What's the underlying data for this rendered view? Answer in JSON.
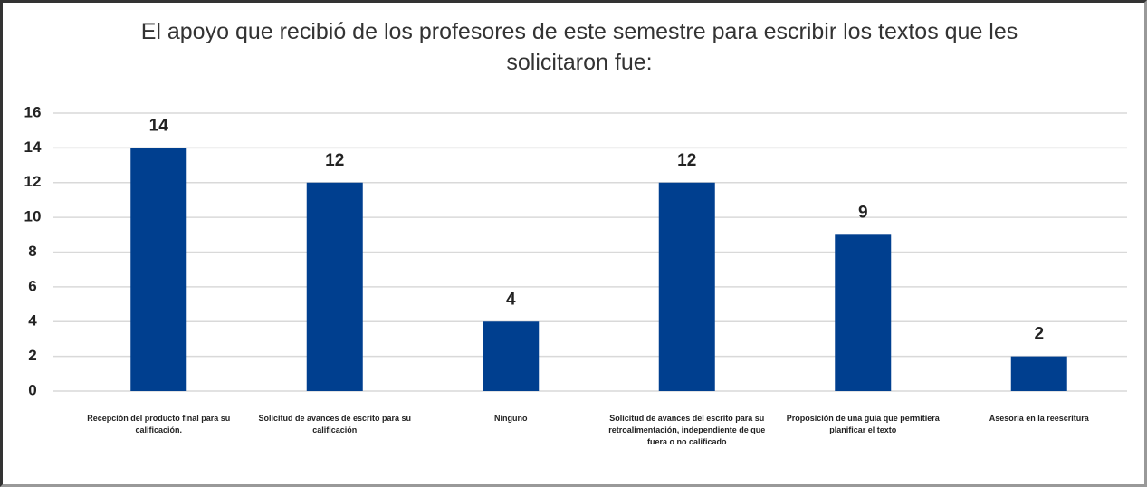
{
  "chart_data": {
    "type": "bar",
    "title": "El apoyo que recibió de los profesores de este semestre para escribir  los textos que les solicitaron fue:",
    "categories": [
      "Recepción del producto  final para su calificación.",
      "Solicitud de avances de escrito para su calificación",
      "Ninguno",
      "Solicitud de avances del escrito para su retroalimentación, independiente de que fuera o no calificado",
      "Proposición de una guía que permitiera planificar el texto",
      "Asesoría en la reescritura"
    ],
    "values": [
      14,
      12,
      4,
      12,
      9,
      2
    ],
    "color": "#003f8f",
    "ylim": [
      0,
      16
    ],
    "yticks": [
      0,
      2,
      4,
      6,
      8,
      10,
      12,
      14,
      16
    ],
    "grid": true
  }
}
